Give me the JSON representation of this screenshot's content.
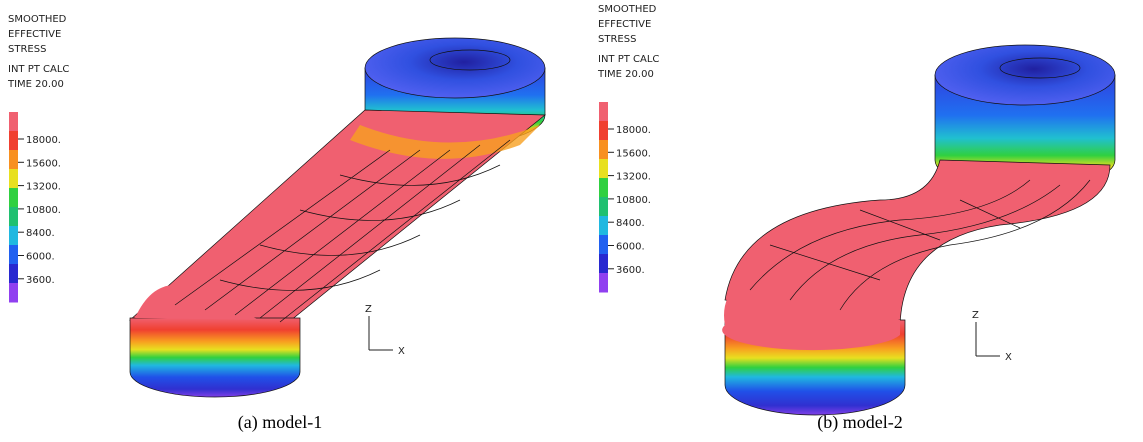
{
  "panels": [
    {
      "legend": {
        "header": [
          "SMOOTHED",
          "EFFECTIVE",
          "STRESS",
          "INT PT CALC",
          "TIME 20.00"
        ],
        "labels": [
          "18000.",
          "15600.",
          "13200.",
          "10800.",
          "8400.",
          "6000.",
          "3600."
        ]
      },
      "axes": {
        "z": "Z",
        "x": "X"
      },
      "caption": "(a) model-1"
    },
    {
      "legend": {
        "header": [
          "SMOOTHED",
          "EFFECTIVE",
          "STRESS",
          "INT PT CALC",
          "TIME 20.00"
        ],
        "labels": [
          "18000.",
          "15600.",
          "13200.",
          "10800.",
          "8400.",
          "6000.",
          "3600."
        ]
      },
      "axes": {
        "z": "Z",
        "x": "X"
      },
      "caption": "(b) model-2"
    }
  ]
}
